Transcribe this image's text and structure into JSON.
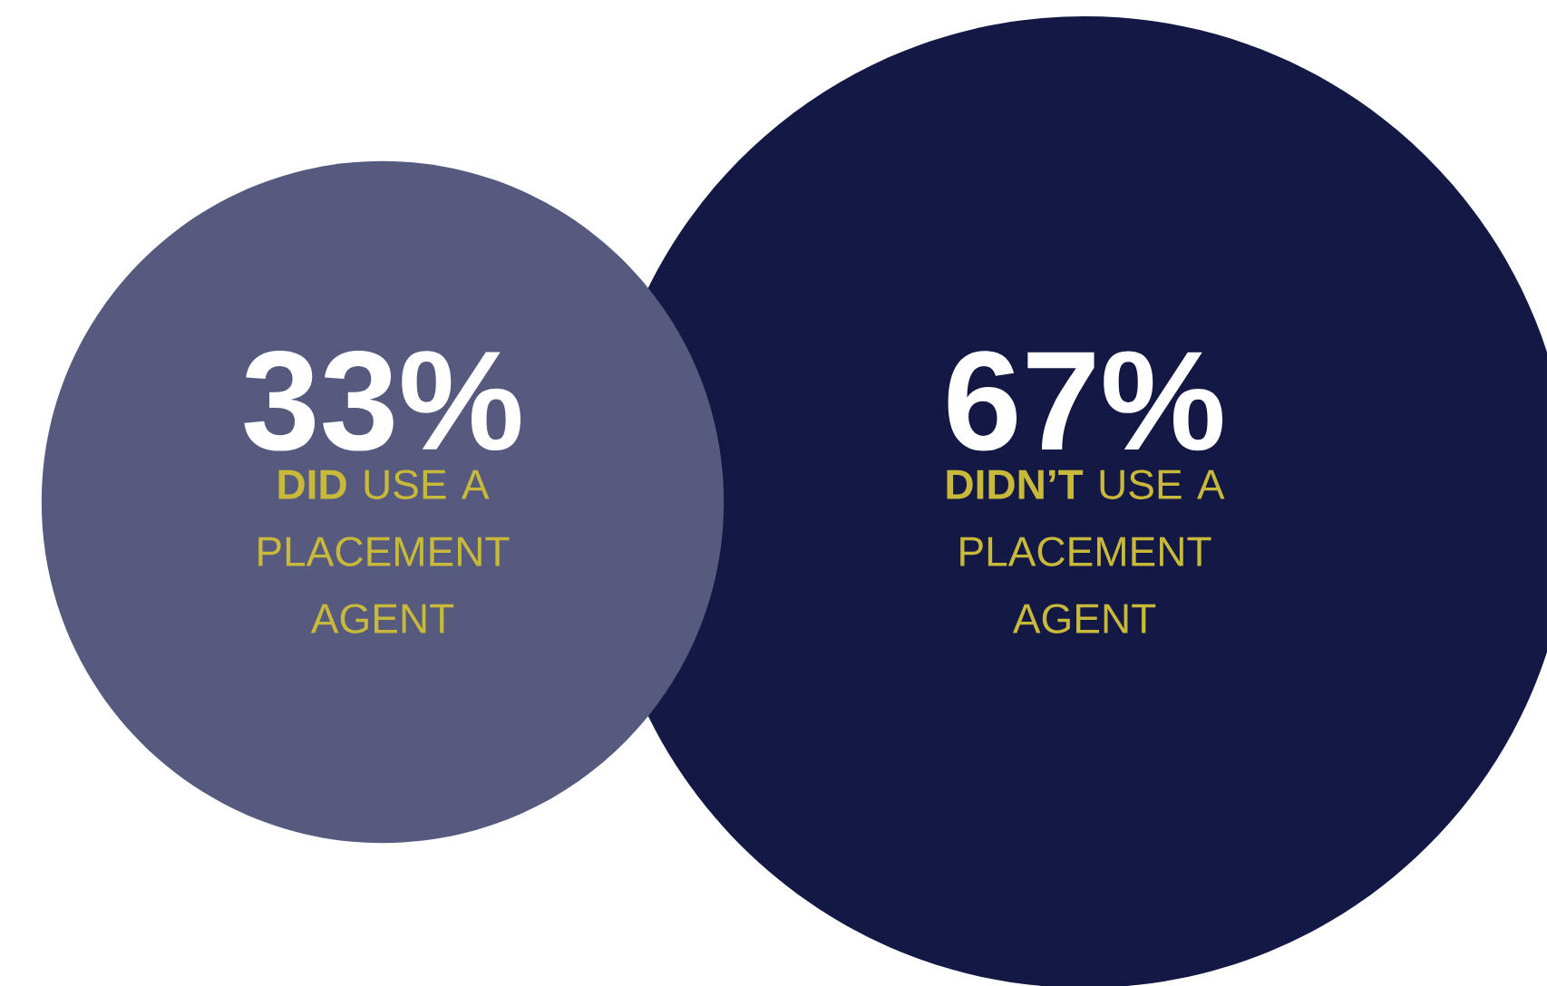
{
  "chart_data": {
    "type": "other",
    "categories": [
      "**DID** USE A PLACEMENT AGENT",
      "**DIDN’T** USE A PLACEMENT AGENT"
    ],
    "values": [
      33,
      67
    ],
    "value_labels": [
      "33%",
      "67%"
    ],
    "colors": [
      "#565a7e",
      "#131845"
    ]
  }
}
